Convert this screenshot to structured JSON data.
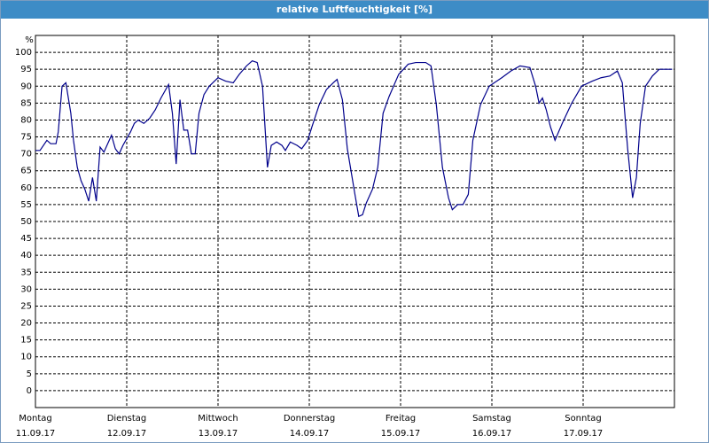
{
  "chart_data": {
    "type": "line",
    "title": "relative Luftfeuchtigkeit [%]",
    "y_label": "%",
    "color": "#00008b",
    "grid": true,
    "xlim": [
      0,
      168
    ],
    "ylim": [
      -5,
      105
    ],
    "yticks": [
      0,
      5,
      10,
      15,
      20,
      25,
      30,
      35,
      40,
      45,
      50,
      55,
      60,
      65,
      70,
      75,
      80,
      85,
      90,
      95,
      100
    ],
    "xticks": [
      {
        "value": 0,
        "label": "Montag",
        "date": "11.09.17"
      },
      {
        "value": 24,
        "label": "Dienstag",
        "date": "12.09.17"
      },
      {
        "value": 48,
        "label": "Mittwoch",
        "date": "13.09.17"
      },
      {
        "value": 72,
        "label": "Donnerstag",
        "date": "14.09.17"
      },
      {
        "value": 96,
        "label": "Freitag",
        "date": "15.09.17"
      },
      {
        "value": 120,
        "label": "Samstag",
        "date": "16.09.17"
      },
      {
        "value": 144,
        "label": "Sonntag",
        "date": "17.09.17"
      }
    ],
    "x": [
      0,
      1.2,
      3,
      4,
      5.4,
      6,
      7,
      8,
      9.3,
      10,
      11,
      12,
      13,
      14,
      15,
      16,
      17,
      18,
      20,
      21,
      22,
      23,
      25,
      26,
      27,
      28.5,
      30,
      31.5,
      33,
      35,
      36,
      37,
      38,
      39,
      40,
      41,
      42,
      43,
      44.3,
      45.7,
      48,
      50,
      52,
      53.6,
      55.5,
      57,
      58.3,
      59.7,
      61,
      62,
      63.4,
      64.8,
      65.7,
      67,
      68.8,
      70,
      71.6,
      72.7,
      74.6,
      76.5,
      78.3,
      79.3,
      80.7,
      82,
      84,
      85,
      86,
      87,
      88.6,
      90,
      91.4,
      93,
      95.5,
      98,
      100,
      102.6,
      104,
      105.4,
      107,
      108.6,
      109.6,
      111,
      112.4,
      113.8,
      115,
      117,
      119.3,
      122.6,
      125,
      127.4,
      130,
      131.5,
      132.4,
      133.3,
      134.3,
      135.4,
      136.6,
      138.5,
      141,
      143.6,
      146.4,
      148.7,
      151,
      153,
      154.3,
      155.7,
      157,
      158,
      159,
      160.4,
      162.2,
      164,
      167.4
    ],
    "values": [
      71,
      71,
      74,
      73,
      73,
      76.5,
      90,
      91,
      82,
      74,
      66,
      62,
      59.5,
      56,
      63,
      56,
      72,
      70.5,
      75.5,
      71.5,
      70,
      72.5,
      76.5,
      79,
      80,
      79,
      80.5,
      83,
      86.5,
      90.5,
      82,
      67,
      86,
      77,
      77,
      70,
      70,
      82,
      87.5,
      90,
      92.5,
      91.5,
      91,
      93.5,
      96,
      97.5,
      97,
      90,
      66,
      72.5,
      73.5,
      72.5,
      71,
      73.5,
      72.5,
      71.5,
      74,
      78,
      84.5,
      89,
      91,
      92,
      86,
      71.5,
      58,
      51.5,
      52,
      55.5,
      59.5,
      66,
      82,
      87,
      93.5,
      96.5,
      97,
      97,
      96,
      84.5,
      66,
      57,
      53.5,
      55,
      55,
      58,
      74,
      84.5,
      90,
      92.5,
      94.5,
      96,
      95.5,
      90,
      85,
      86.5,
      83,
      78,
      74,
      79,
      85,
      90,
      91.5,
      92.5,
      93,
      94.5,
      91,
      71.5,
      57,
      63,
      79,
      90,
      93,
      95,
      95
    ]
  }
}
